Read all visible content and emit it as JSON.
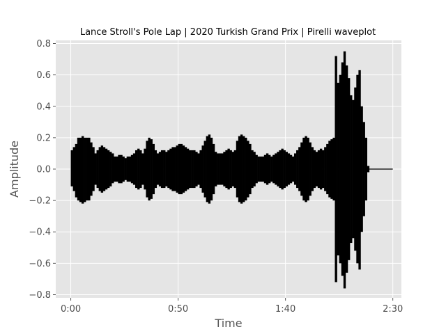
{
  "chart_data": {
    "type": "line",
    "title": "Lance Stroll's Pole Lap | 2020 Turkish Grand Prix | Pirelli waveplot",
    "xlabel": "Time",
    "ylabel": "Amplitude",
    "xlim": [
      -7,
      154
    ],
    "ylim": [
      -0.82,
      0.82
    ],
    "x_ticks": [
      0,
      50,
      100,
      150
    ],
    "x_tick_labels": [
      "0:00",
      "0:50",
      "1:40",
      "2:30"
    ],
    "y_ticks": [
      -0.8,
      -0.6,
      -0.4,
      -0.2,
      0.0,
      0.2,
      0.4,
      0.6,
      0.8
    ],
    "y_tick_labels": [
      "−0.8",
      "−0.6",
      "−0.4",
      "−0.2",
      "0.0",
      "0.2",
      "0.4",
      "0.6",
      "0.8"
    ],
    "grid": true,
    "series": [
      {
        "color": "#000000",
        "x": [
          0,
          1,
          2,
          3,
          4,
          5,
          6,
          7,
          8,
          9,
          10,
          11,
          12,
          13,
          14,
          15,
          16,
          17,
          18,
          19,
          20,
          21,
          22,
          23,
          24,
          25,
          26,
          27,
          28,
          29,
          30,
          31,
          32,
          33,
          34,
          35,
          36,
          37,
          38,
          39,
          40,
          41,
          42,
          43,
          44,
          45,
          46,
          47,
          48,
          49,
          50,
          51,
          52,
          53,
          54,
          55,
          56,
          57,
          58,
          59,
          60,
          61,
          62,
          63,
          64,
          65,
          66,
          67,
          68,
          69,
          70,
          71,
          72,
          73,
          74,
          75,
          76,
          77,
          78,
          79,
          80,
          81,
          82,
          83,
          84,
          85,
          86,
          87,
          88,
          89,
          90,
          91,
          92,
          93,
          94,
          95,
          96,
          97,
          98,
          99,
          100,
          101,
          102,
          103,
          104,
          105,
          106,
          107,
          108,
          109,
          110,
          111,
          112,
          113,
          114,
          115,
          116,
          117,
          118,
          119,
          120,
          121,
          122,
          123,
          124,
          125,
          126,
          127,
          128,
          129,
          130,
          131,
          132,
          133,
          134,
          135,
          136,
          137,
          138,
          139,
          140,
          141,
          142,
          143,
          144,
          145,
          146,
          147,
          148,
          149,
          150
        ],
        "y_max": [
          0.12,
          0.14,
          0.16,
          0.2,
          0.2,
          0.21,
          0.2,
          0.2,
          0.2,
          0.17,
          0.14,
          0.1,
          0.12,
          0.14,
          0.15,
          0.14,
          0.13,
          0.12,
          0.11,
          0.1,
          0.08,
          0.08,
          0.09,
          0.09,
          0.08,
          0.07,
          0.08,
          0.08,
          0.09,
          0.1,
          0.12,
          0.13,
          0.12,
          0.1,
          0.13,
          0.18,
          0.2,
          0.19,
          0.16,
          0.12,
          0.1,
          0.11,
          0.12,
          0.12,
          0.11,
          0.12,
          0.13,
          0.14,
          0.14,
          0.15,
          0.16,
          0.16,
          0.15,
          0.14,
          0.13,
          0.12,
          0.12,
          0.12,
          0.11,
          0.1,
          0.12,
          0.15,
          0.18,
          0.21,
          0.22,
          0.2,
          0.16,
          0.11,
          0.1,
          0.1,
          0.1,
          0.11,
          0.12,
          0.13,
          0.12,
          0.11,
          0.12,
          0.18,
          0.21,
          0.22,
          0.21,
          0.2,
          0.18,
          0.16,
          0.12,
          0.11,
          0.09,
          0.08,
          0.08,
          0.08,
          0.09,
          0.1,
          0.09,
          0.08,
          0.09,
          0.1,
          0.11,
          0.12,
          0.13,
          0.12,
          0.11,
          0.1,
          0.09,
          0.08,
          0.1,
          0.12,
          0.14,
          0.17,
          0.2,
          0.21,
          0.2,
          0.17,
          0.14,
          0.12,
          0.11,
          0.12,
          0.13,
          0.12,
          0.14,
          0.16,
          0.18,
          0.19,
          0.2,
          0.72,
          0.55,
          0.6,
          0.68,
          0.75,
          0.66,
          0.58,
          0.47,
          0.44,
          0.52,
          0.6,
          0.63,
          0.4,
          0.3,
          0.2,
          0.02,
          0.0,
          0.0,
          0.0,
          0.0,
          0.0,
          0.0,
          0.0,
          0.0,
          0.0,
          0.0,
          0.0,
          0.0
        ],
        "y_min": [
          -0.11,
          -0.14,
          -0.18,
          -0.2,
          -0.21,
          -0.22,
          -0.21,
          -0.2,
          -0.2,
          -0.17,
          -0.14,
          -0.1,
          -0.12,
          -0.14,
          -0.15,
          -0.14,
          -0.13,
          -0.12,
          -0.11,
          -0.09,
          -0.08,
          -0.08,
          -0.09,
          -0.09,
          -0.08,
          -0.07,
          -0.08,
          -0.08,
          -0.09,
          -0.1,
          -0.12,
          -0.13,
          -0.12,
          -0.1,
          -0.13,
          -0.18,
          -0.2,
          -0.19,
          -0.16,
          -0.12,
          -0.1,
          -0.11,
          -0.12,
          -0.12,
          -0.11,
          -0.12,
          -0.13,
          -0.14,
          -0.14,
          -0.15,
          -0.16,
          -0.16,
          -0.15,
          -0.14,
          -0.13,
          -0.12,
          -0.12,
          -0.12,
          -0.11,
          -0.1,
          -0.12,
          -0.15,
          -0.18,
          -0.21,
          -0.22,
          -0.2,
          -0.16,
          -0.11,
          -0.1,
          -0.1,
          -0.1,
          -0.11,
          -0.12,
          -0.13,
          -0.12,
          -0.11,
          -0.12,
          -0.18,
          -0.21,
          -0.22,
          -0.21,
          -0.2,
          -0.18,
          -0.16,
          -0.12,
          -0.11,
          -0.09,
          -0.08,
          -0.08,
          -0.08,
          -0.09,
          -0.1,
          -0.09,
          -0.08,
          -0.09,
          -0.1,
          -0.11,
          -0.12,
          -0.13,
          -0.12,
          -0.11,
          -0.1,
          -0.09,
          -0.08,
          -0.1,
          -0.12,
          -0.14,
          -0.17,
          -0.2,
          -0.21,
          -0.2,
          -0.17,
          -0.14,
          -0.12,
          -0.11,
          -0.12,
          -0.13,
          -0.12,
          -0.14,
          -0.16,
          -0.18,
          -0.19,
          -0.2,
          -0.72,
          -0.55,
          -0.6,
          -0.68,
          -0.76,
          -0.66,
          -0.58,
          -0.47,
          -0.44,
          -0.52,
          -0.6,
          -0.64,
          -0.4,
          -0.3,
          -0.2,
          -0.02,
          0.0,
          0.0,
          0.0,
          0.0,
          0.0,
          0.0,
          0.0,
          0.0,
          0.0,
          0.0,
          0.0,
          0.0
        ]
      }
    ]
  }
}
